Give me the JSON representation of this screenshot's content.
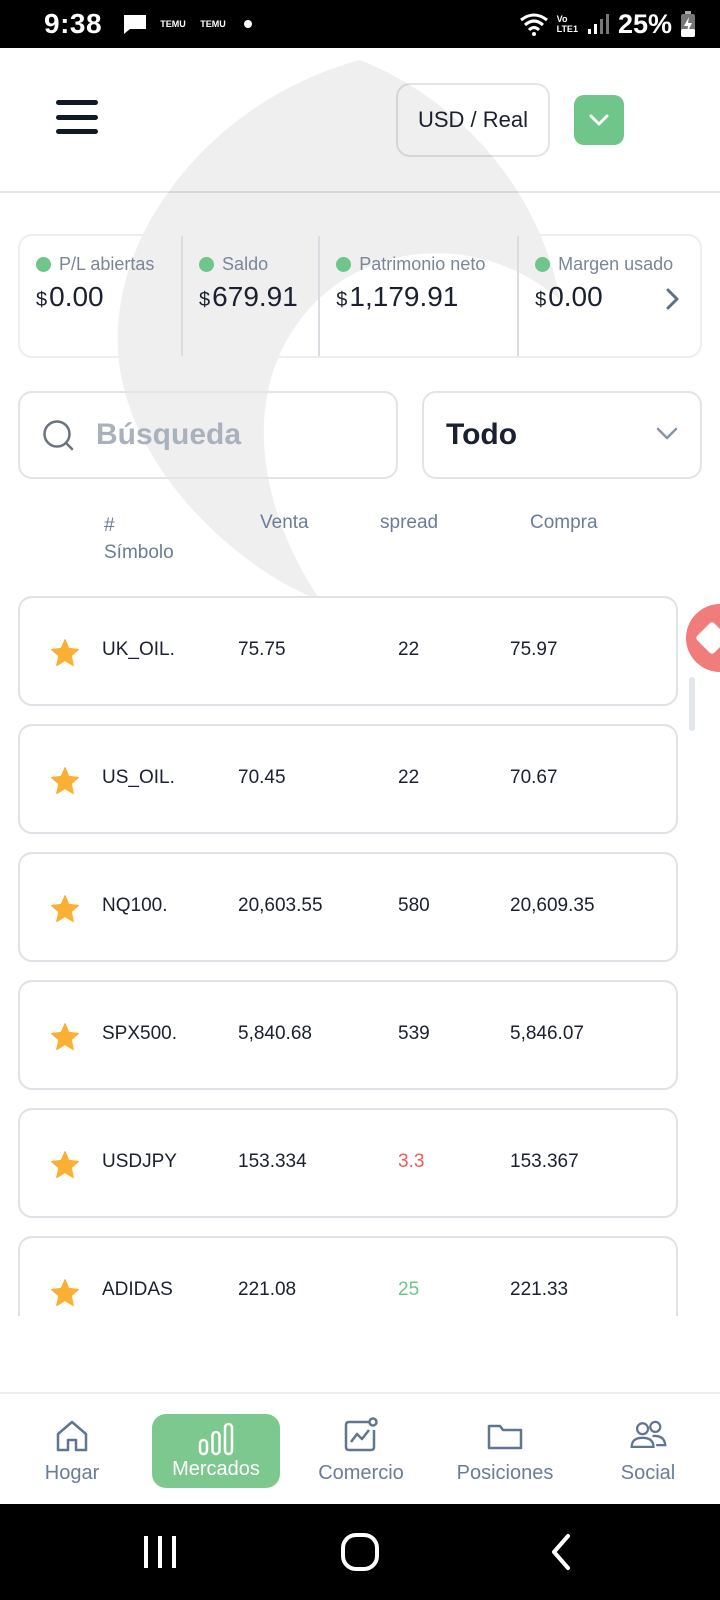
{
  "status_bar": {
    "time": "9:38",
    "notif_badge_1": "TEMU",
    "notif_badge_2": "TEMU",
    "volte_top": "Vo",
    "volte_bottom": "LTE1",
    "battery": "25%"
  },
  "header": {
    "account": "USD / Real"
  },
  "summary": [
    {
      "label": "P/L abiertas",
      "currency": "$",
      "value": "0.00"
    },
    {
      "label": "Saldo",
      "currency": "$",
      "value": "679.91"
    },
    {
      "label": "Patrimonio neto",
      "currency": "$",
      "value": "1,179.91"
    },
    {
      "label": "Margen usado",
      "currency": "$",
      "value": "0.00"
    }
  ],
  "search": {
    "placeholder": "Búsqueda"
  },
  "filter": {
    "selected": "Todo"
  },
  "columns": {
    "hash": "#",
    "symbol": "Símbolo",
    "sell": "Venta",
    "spread": "spread",
    "buy": "Compra"
  },
  "rows": [
    {
      "symbol": "UK_OIL.",
      "sell": "75.75",
      "spread": "22",
      "buy": "75.97",
      "spread_color": "#1b2030"
    },
    {
      "symbol": "US_OIL.",
      "sell": "70.45",
      "spread": "22",
      "buy": "70.67",
      "spread_color": "#1b2030"
    },
    {
      "symbol": "NQ100.",
      "sell": "20,603.55",
      "spread": "580",
      "buy": "20,609.35",
      "spread_color": "#1b2030"
    },
    {
      "symbol": "SPX500.",
      "sell": "5,840.68",
      "spread": "539",
      "buy": "5,846.07",
      "spread_color": "#1b2030"
    },
    {
      "symbol": "USDJPY",
      "sell": "153.334",
      "spread": "3.3",
      "buy": "153.367",
      "spread_color": "#f05a5a"
    },
    {
      "symbol": "ADIDAS",
      "sell": "221.08",
      "spread": "25",
      "buy": "221.33",
      "spread_color": "#6fc58a"
    }
  ],
  "bottom_nav": {
    "home": "Hogar",
    "markets": "Mercados",
    "trade": "Comercio",
    "positions": "Posiciones",
    "social": "Social"
  },
  "colors": {
    "accent_green": "#6fc58a",
    "text_dark": "#1b2030",
    "text_muted": "#6b7d96",
    "star": "#fbb034"
  }
}
